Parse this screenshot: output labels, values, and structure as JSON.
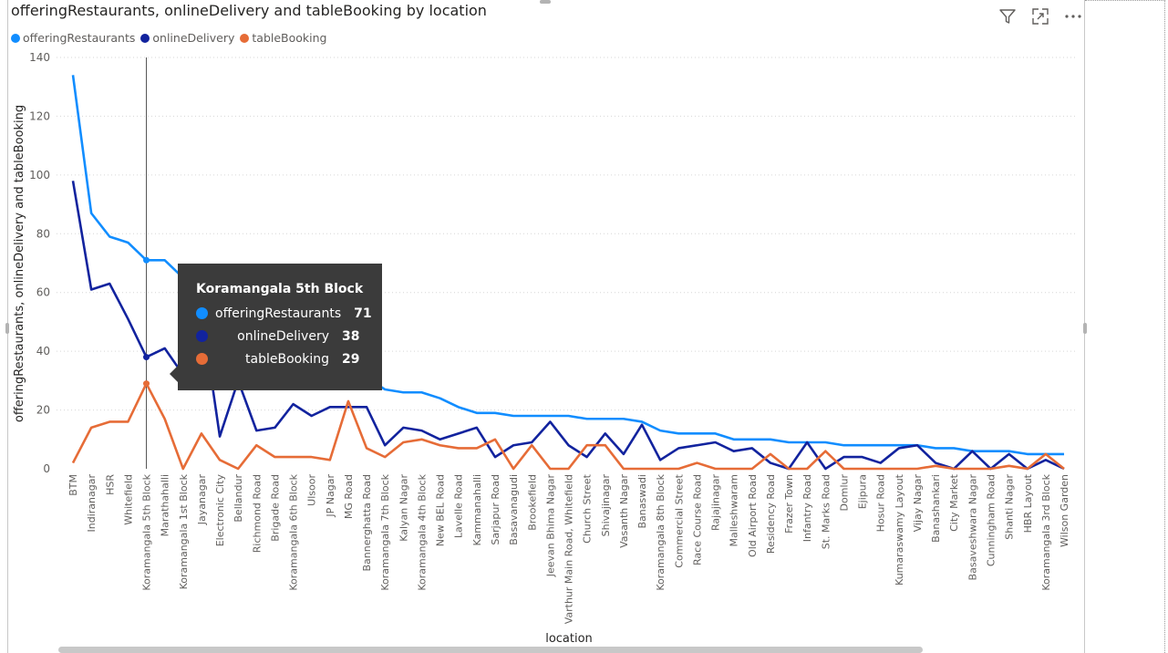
{
  "visual": {
    "title": "offeringRestaurants, onlineDelivery and tableBooking by location",
    "toolbar": [
      "filter-icon",
      "focus-mode-icon",
      "more-options-icon"
    ]
  },
  "legend": [
    {
      "name": "offeringRestaurants",
      "color": "#118DFF"
    },
    {
      "name": "onlineDelivery",
      "color": "#12239E"
    },
    {
      "name": "tableBooking",
      "color": "#E66C37"
    }
  ],
  "tooltip": {
    "title": "Koramangala 5th Block",
    "rows": [
      {
        "name": "offeringRestaurants",
        "value": "71",
        "color": "#118DFF"
      },
      {
        "name": "onlineDelivery",
        "value": "38",
        "color": "#12239E"
      },
      {
        "name": "tableBooking",
        "value": "29",
        "color": "#E66C37"
      }
    ]
  },
  "chart_data": {
    "type": "line",
    "title": "offeringRestaurants, onlineDelivery and tableBooking by location",
    "xlabel": "location",
    "ylabel": "offeringRestaurants, onlineDelivery and tableBooking",
    "ylim": [
      0,
      140
    ],
    "yticks": [
      0,
      20,
      40,
      60,
      80,
      100,
      120,
      140
    ],
    "grid": true,
    "legend_position": "top-left",
    "highlighted_category": "Koramangala 5th Block",
    "categories": [
      "BTM",
      "Indiranagar",
      "HSR",
      "Whitefield",
      "Koramangala 5th Block",
      "Marathahalli",
      "Koramangala 1st Block",
      "Jayanagar",
      "Electronic City",
      "Bellandur",
      "Richmond Road",
      "Brigade Road",
      "Koramangala 6th Block",
      "Ulsoor",
      "JP Nagar",
      "MG Road",
      "Bannerghatta Road",
      "Koramangala 7th Block",
      "Kalyan Nagar",
      "Koramangala 4th Block",
      "New BEL Road",
      "Lavelle Road",
      "Kammanahalli",
      "Sarjapur Road",
      "Basavanagudi",
      "Brookefield",
      "Jeevan Bhima Nagar",
      "Varthur Main Road, Whitefield",
      "Church Street",
      "Shivajinagar",
      "Vasanth Nagar",
      "Banaswadi",
      "Koramangala 8th Block",
      "Commercial Street",
      "Race Course Road",
      "Rajajinagar",
      "Malleshwaram",
      "Old Airport Road",
      "Residency Road",
      "Frazer Town",
      "Infantry Road",
      "St. Marks Road",
      "Domlur",
      "Ejipura",
      "Hosur Road",
      "Kumaraswamy Layout",
      "Vijay Nagar",
      "Banashankari",
      "City Market",
      "Basaveshwara Nagar",
      "Cunningham Road",
      "Shanti Nagar",
      "HBR Layout",
      "Koramangala 3rd Block",
      "Wilson Garden"
    ],
    "series": [
      {
        "name": "offeringRestaurants",
        "color": "#118DFF",
        "values": [
          134,
          87,
          79,
          77,
          71,
          71,
          65,
          62,
          41,
          38,
          37,
          36,
          35,
          34,
          33,
          33,
          31,
          27,
          26,
          26,
          24,
          21,
          19,
          19,
          18,
          18,
          18,
          18,
          17,
          17,
          17,
          16,
          13,
          12,
          12,
          12,
          10,
          10,
          10,
          9,
          9,
          9,
          8,
          8,
          8,
          8,
          8,
          7,
          7,
          6,
          6,
          6,
          5,
          5,
          5
        ]
      },
      {
        "name": "onlineDelivery",
        "color": "#12239E",
        "values": [
          98,
          61,
          63,
          51,
          38,
          41,
          32,
          54,
          11,
          30,
          13,
          14,
          22,
          18,
          21,
          21,
          21,
          8,
          14,
          13,
          10,
          12,
          14,
          4,
          8,
          9,
          16,
          8,
          4,
          12,
          5,
          15,
          3,
          7,
          8,
          9,
          6,
          7,
          2,
          0,
          9,
          0,
          4,
          4,
          2,
          7,
          8,
          2,
          0,
          6,
          0,
          5,
          0,
          3,
          0
        ]
      },
      {
        "name": "tableBooking",
        "color": "#E66C37",
        "values": [
          2,
          14,
          16,
          16,
          29,
          17,
          0,
          12,
          3,
          0,
          8,
          4,
          4,
          4,
          3,
          23,
          7,
          4,
          9,
          10,
          8,
          7,
          7,
          10,
          0,
          8,
          0,
          0,
          8,
          8,
          0,
          0,
          0,
          0,
          2,
          0,
          0,
          0,
          5,
          0,
          0,
          6,
          0,
          0,
          0,
          0,
          0,
          1,
          0,
          0,
          0,
          1,
          0,
          5,
          0
        ]
      }
    ]
  }
}
